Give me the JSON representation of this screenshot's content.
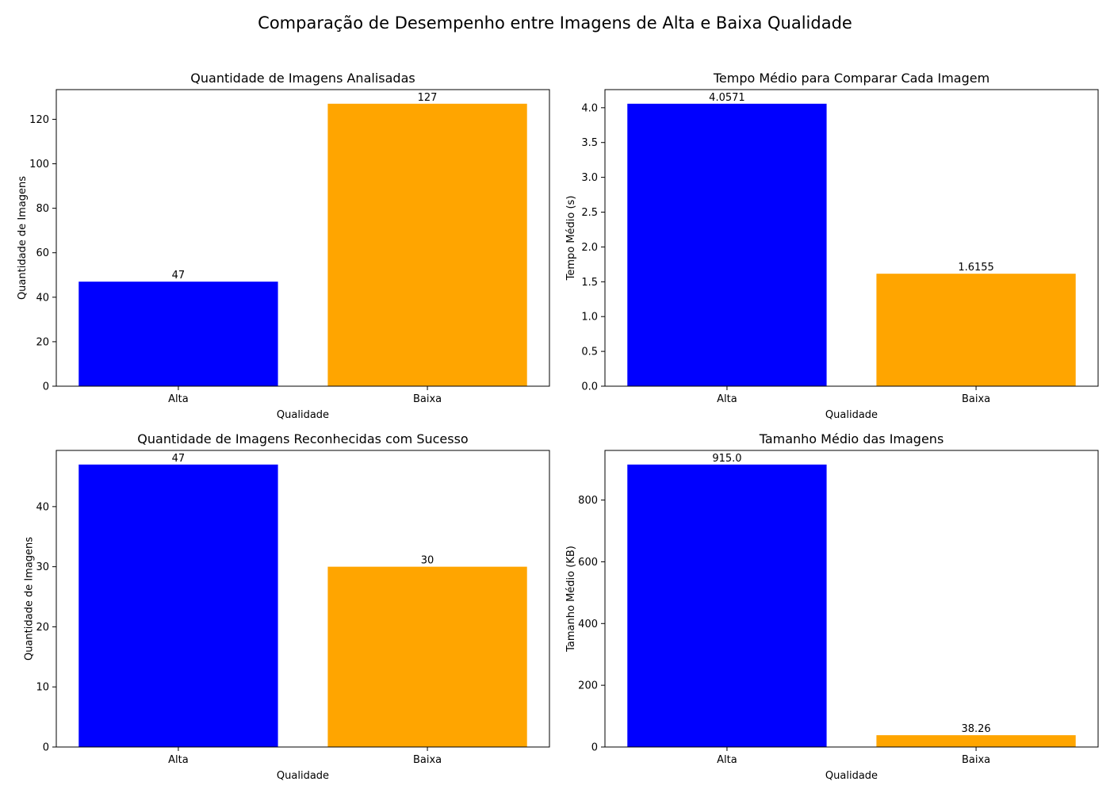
{
  "figure": {
    "suptitle": "Comparação de Desempenho entre Imagens de Alta e Baixa Qualidade"
  },
  "colors": {
    "Alta": "#0000ff",
    "Baixa": "#ffa500"
  },
  "chart_data": [
    {
      "id": "qtd-analisadas",
      "type": "bar",
      "title": "Quantidade de Imagens Analisadas",
      "xlabel": "Qualidade",
      "ylabel": "Quantidade de Imagens",
      "categories": [
        "Alta",
        "Baixa"
      ],
      "values": [
        47,
        127
      ],
      "value_labels": [
        "47",
        "127"
      ],
      "ylim": [
        0,
        133.35
      ],
      "yticks": [
        0,
        20,
        40,
        60,
        80,
        100,
        120
      ],
      "ytick_labels": [
        "0",
        "20",
        "40",
        "60",
        "80",
        "100",
        "120"
      ],
      "grid": false
    },
    {
      "id": "tempo-medio",
      "type": "bar",
      "title": "Tempo Médio para Comparar Cada Imagem",
      "xlabel": "Qualidade",
      "ylabel": "Tempo Médio (s)",
      "categories": [
        "Alta",
        "Baixa"
      ],
      "values": [
        4.0571,
        1.6155
      ],
      "value_labels": [
        "4.0571",
        "1.6155"
      ],
      "ylim": [
        0,
        4.26
      ],
      "yticks": [
        0,
        0.5,
        1.0,
        1.5,
        2.0,
        2.5,
        3.0,
        3.5,
        4.0
      ],
      "ytick_labels": [
        "0.0",
        "0.5",
        "1.0",
        "1.5",
        "2.0",
        "2.5",
        "3.0",
        "3.5",
        "4.0"
      ],
      "grid": false
    },
    {
      "id": "qtd-reconhecidas",
      "type": "bar",
      "title": "Quantidade de Imagens Reconhecidas com Sucesso",
      "xlabel": "Qualidade",
      "ylabel": "Quantidade de Imagens",
      "categories": [
        "Alta",
        "Baixa"
      ],
      "values": [
        47,
        30
      ],
      "value_labels": [
        "47",
        "30"
      ],
      "ylim": [
        0,
        49.35
      ],
      "yticks": [
        0,
        10,
        20,
        30,
        40
      ],
      "ytick_labels": [
        "0",
        "10",
        "20",
        "30",
        "40"
      ],
      "grid": false
    },
    {
      "id": "tamanho-medio",
      "type": "bar",
      "title": "Tamanho Médio das Imagens",
      "xlabel": "Qualidade",
      "ylabel": "Tamanho Médio (KB)",
      "categories": [
        "Alta",
        "Baixa"
      ],
      "values": [
        915.0,
        38.26
      ],
      "value_labels": [
        "915.0",
        "38.26"
      ],
      "ylim": [
        0,
        960.75
      ],
      "yticks": [
        0,
        200,
        400,
        600,
        800
      ],
      "ytick_labels": [
        "0",
        "200",
        "400",
        "600",
        "800"
      ],
      "grid": false
    }
  ]
}
